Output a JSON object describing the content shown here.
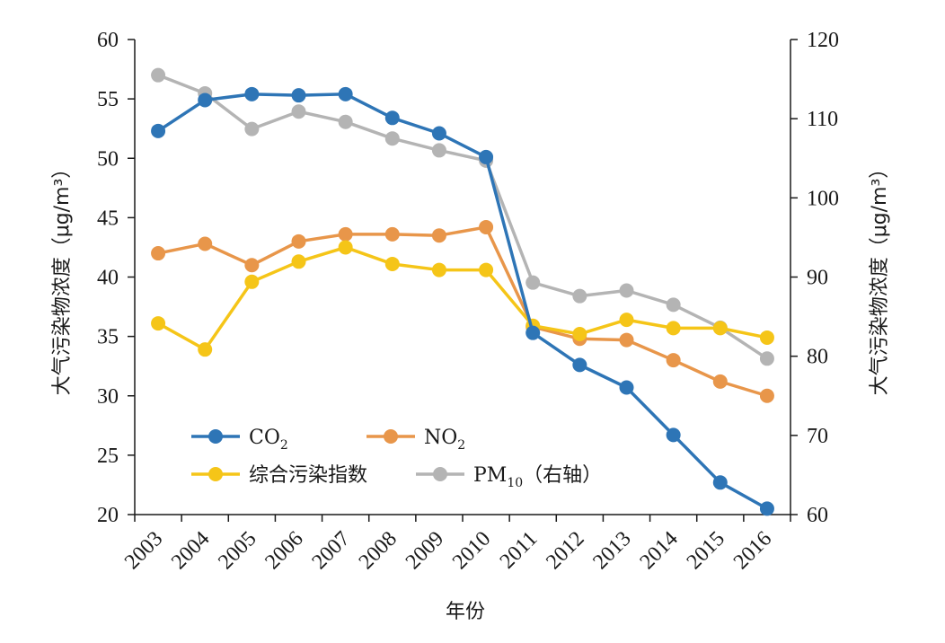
{
  "chart_data": {
    "type": "line",
    "categories": [
      "2003",
      "2004",
      "2005",
      "2006",
      "2007",
      "2008",
      "2009",
      "2010",
      "2011",
      "2012",
      "2013",
      "2014",
      "2015",
      "2016"
    ],
    "xlabel": "年份",
    "ylabel_left": "大气污染物浓度（μg/m³）",
    "ylabel_right": "大气污染物浓度（μg/m³）",
    "ylim_left": [
      20,
      60
    ],
    "ylim_right": [
      60,
      120
    ],
    "yticks_left": [
      20,
      25,
      30,
      35,
      40,
      45,
      50,
      55,
      60
    ],
    "yticks_right": [
      60,
      70,
      80,
      90,
      100,
      110,
      120
    ],
    "grid": false,
    "legend_position": "bottom-left",
    "series": [
      {
        "name": "CO2",
        "label_main": "CO",
        "label_sub": "2",
        "axis": "left",
        "color": "#2E75B6",
        "values": [
          52.3,
          54.9,
          55.4,
          55.3,
          55.4,
          53.4,
          52.1,
          50.1,
          35.3,
          32.6,
          30.7,
          26.7,
          22.7,
          20.5
        ]
      },
      {
        "name": "NO2",
        "label_main": "NO",
        "label_sub": "2",
        "axis": "left",
        "color": "#E8964A",
        "values": [
          42.0,
          42.8,
          41.0,
          43.0,
          43.6,
          43.6,
          43.5,
          44.2,
          35.8,
          34.8,
          34.7,
          33.0,
          31.2,
          30.0
        ]
      },
      {
        "name": "综合污染指数",
        "label_main": "综合污染指数",
        "label_sub": "",
        "axis": "left",
        "color": "#F5C518",
        "values": [
          36.1,
          33.9,
          39.6,
          41.3,
          42.5,
          41.1,
          40.6,
          40.6,
          35.9,
          35.2,
          36.4,
          35.7,
          35.7,
          34.9
        ]
      },
      {
        "name": "PM10（右轴）",
        "label_main": "PM",
        "label_sub": "10",
        "label_suffix": "（右轴）",
        "axis": "right",
        "color": "#B4B4B4",
        "values": [
          115.5,
          113.2,
          108.7,
          110.9,
          109.6,
          107.5,
          106.0,
          104.7,
          89.3,
          87.6,
          88.3,
          86.5,
          83.6,
          79.7
        ]
      }
    ]
  }
}
